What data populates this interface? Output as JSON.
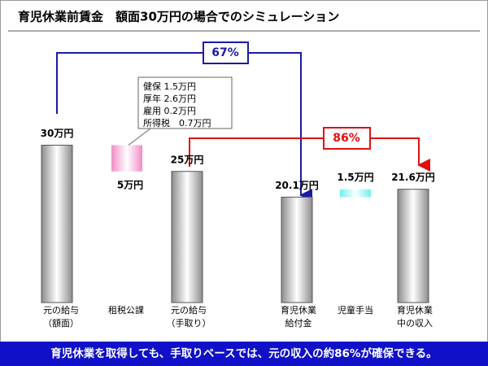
{
  "chart_data": {
    "type": "bar",
    "title": "育児休業前賃金　額面30万円の場合でのシミュレーション",
    "categories": [
      "元の給与\n（額面）",
      "租税公課",
      "元の給与\n（手取り）",
      "育児休業\n給付金",
      "児童手当",
      "育児休業\n中の収入"
    ],
    "values": [
      30,
      5,
      25,
      20.1,
      1.5,
      21.6
    ],
    "value_labels": [
      "30万円",
      "5万円",
      "25万円",
      "20.1万円",
      "1.5万円",
      "21.6万円"
    ],
    "colors": [
      "#8c8c8c",
      "#f08cc8",
      "#8c8c8c",
      "#8c8c8c",
      "#6ff0f0",
      "#8c8c8c"
    ],
    "annotations": {
      "ratio_net": "67%",
      "ratio_income": "86%",
      "tax_breakdown": [
        "健保 1.5万円",
        "厚年 2.6万円",
        "雇用 0.2万円",
        "所得税　0.7万円"
      ]
    },
    "footer": "育児休業を取得しても、手取りベースでは、元の収入の約86%が確保できる。"
  }
}
